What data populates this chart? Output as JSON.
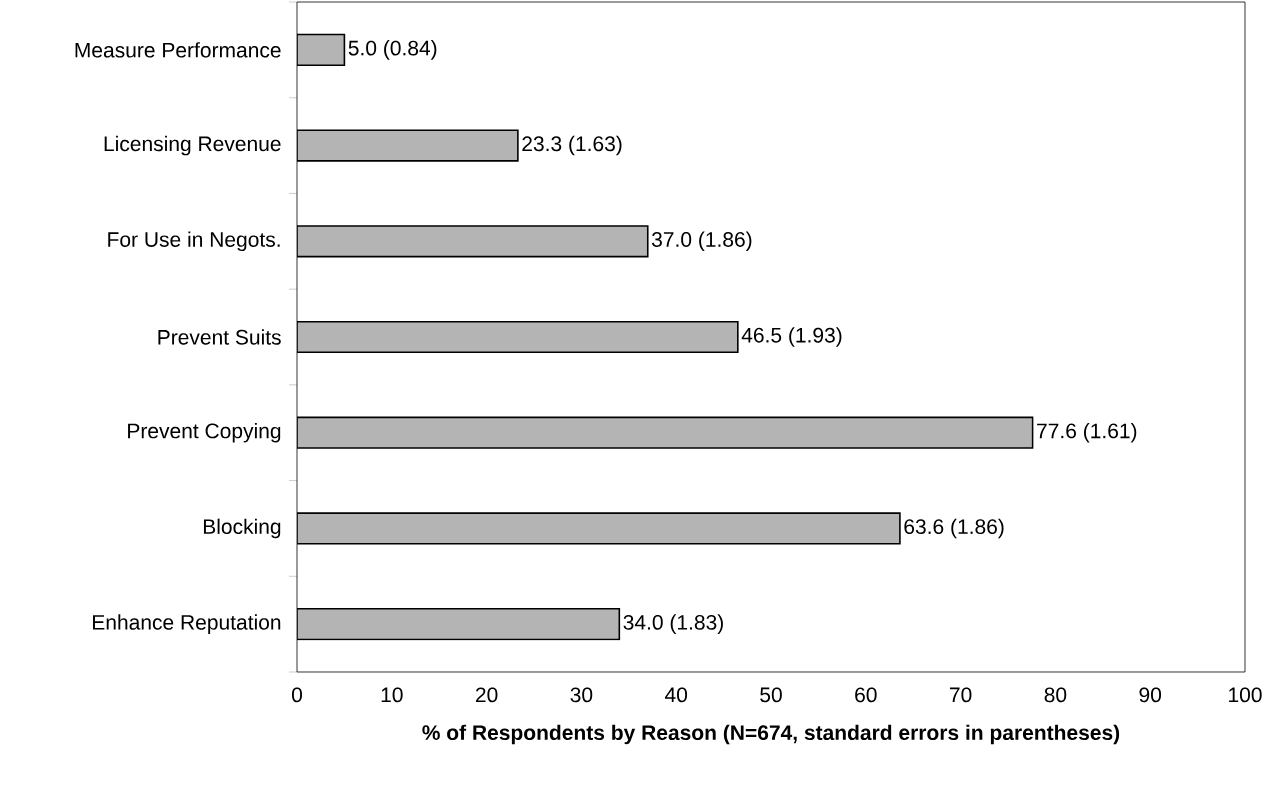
{
  "chart_data": {
    "type": "bar",
    "orientation": "horizontal",
    "categories": [
      "Measure Performance",
      "Licensing Revenue",
      "For Use in Negots.",
      "Prevent Suits",
      "Prevent Copying",
      "Blocking",
      "Enhance Reputation"
    ],
    "values": [
      5.0,
      23.3,
      37.0,
      46.5,
      77.6,
      63.6,
      34.0
    ],
    "value_labels": [
      "5.0 (0.84)",
      "23.3 (1.63)",
      "37.0 (1.86)",
      "46.5 (1.93)",
      "77.6 (1.61)",
      "63.6 (1.86)",
      "34.0 (1.83)"
    ],
    "color": "#b4b4b4",
    "xlim": [
      0,
      100
    ],
    "xticks": [
      0,
      10,
      20,
      30,
      40,
      50,
      60,
      70,
      80,
      90,
      100
    ],
    "xlabel": "% of Respondents by Reason (N=674, standard errors in parentheses)"
  }
}
